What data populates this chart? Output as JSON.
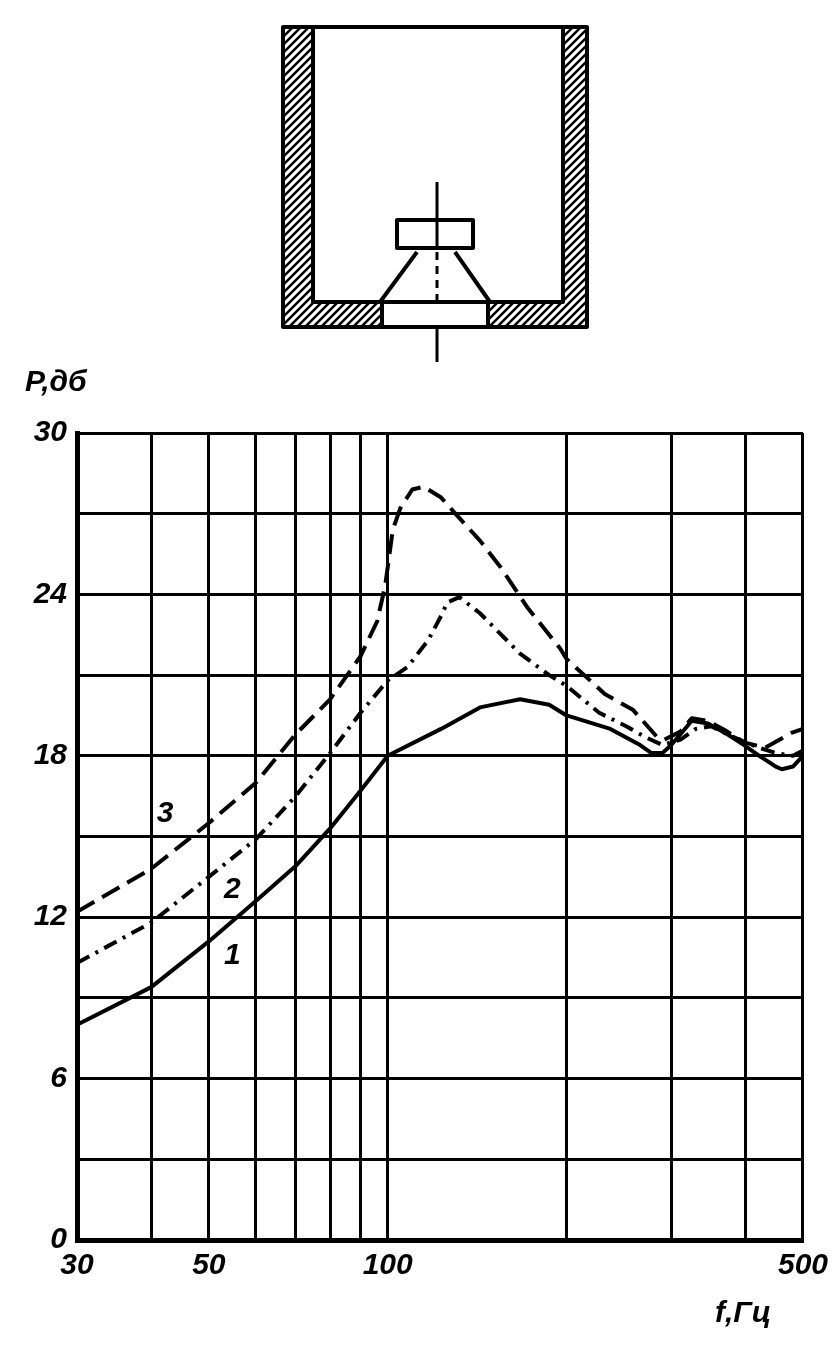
{
  "chart_data": {
    "type": "line",
    "xlabel": "f,Гц",
    "ylabel": "P,дб",
    "log": "x",
    "grid": true,
    "xlim": [
      30,
      500
    ],
    "xticks": [
      30,
      {
        "value": 40,
        "label": null
      },
      50,
      {
        "value": 60,
        "label": null
      },
      {
        "value": 70,
        "label": null
      },
      {
        "value": 80,
        "label": null
      },
      {
        "value": 90,
        "label": null
      },
      100,
      {
        "value": 200,
        "label": null
      },
      {
        "value": 300,
        "label": null
      },
      {
        "value": 400,
        "label": null
      },
      500
    ],
    "ylim": [
      0,
      30
    ],
    "yticks": [
      0,
      {
        "value": 3,
        "label": null
      },
      6,
      {
        "value": 9,
        "label": null
      },
      12,
      {
        "value": 15,
        "label": null
      },
      18,
      {
        "value": 21,
        "label": null
      },
      24,
      {
        "value": 27,
        "label": null
      },
      30
    ],
    "series": [
      {
        "name": "1",
        "color": "#000000",
        "line_style": "solid",
        "x": [
          30,
          40,
          50,
          60,
          70,
          80,
          90,
          100,
          123,
          143,
          167,
          187,
          200,
          237,
          266,
          278,
          290,
          300,
          311,
          325,
          346,
          373,
          398,
          422,
          450,
          461,
          481,
          500
        ],
        "values": [
          8.0,
          9.4,
          11.1,
          12.6,
          13.9,
          15.3,
          16.7,
          18.0,
          19.0,
          19.8,
          20.1,
          19.9,
          19.5,
          19.0,
          18.4,
          18.1,
          18.1,
          18.4,
          18.8,
          19.3,
          19.2,
          18.8,
          18.4,
          18.0,
          17.6,
          17.5,
          17.6,
          18.0
        ]
      },
      {
        "name": "2",
        "color": "#000000",
        "line_style": "dashdot",
        "x": [
          30,
          40,
          50,
          60,
          70,
          80,
          90,
          100,
          108,
          117,
          123,
          126,
          132,
          143,
          167,
          187,
          200,
          227,
          252,
          271,
          290,
          311,
          330,
          350,
          373,
          400,
          422,
          450,
          481,
          500
        ],
        "values": [
          10.3,
          11.8,
          13.5,
          14.9,
          16.5,
          18.1,
          19.6,
          20.8,
          21.3,
          22.3,
          23.2,
          23.7,
          23.9,
          23.3,
          21.8,
          21.0,
          20.6,
          19.6,
          19.1,
          18.7,
          18.4,
          18.6,
          19.0,
          19.1,
          18.8,
          18.5,
          18.3,
          18.1,
          18.0,
          18.2
        ]
      },
      {
        "name": "3",
        "color": "#000000",
        "line_style": "dashed",
        "x": [
          30,
          40,
          50,
          60,
          70,
          80,
          90,
          96,
          99,
          100,
          102,
          105,
          110,
          115,
          123,
          130,
          143,
          155,
          172,
          195,
          200,
          232,
          259,
          284,
          292,
          311,
          325,
          346,
          373,
          398,
          432,
          478,
          500
        ],
        "values": [
          12.2,
          13.8,
          15.5,
          17.0,
          18.8,
          20.1,
          21.7,
          23.0,
          24.3,
          25.0,
          26.4,
          27.2,
          27.9,
          28.0,
          27.6,
          27.0,
          26.0,
          25.0,
          23.5,
          22.0,
          21.6,
          20.3,
          19.7,
          18.7,
          18.6,
          18.9,
          19.4,
          19.3,
          18.9,
          18.5,
          18.3,
          18.85,
          19.0
        ]
      }
    ]
  }
}
